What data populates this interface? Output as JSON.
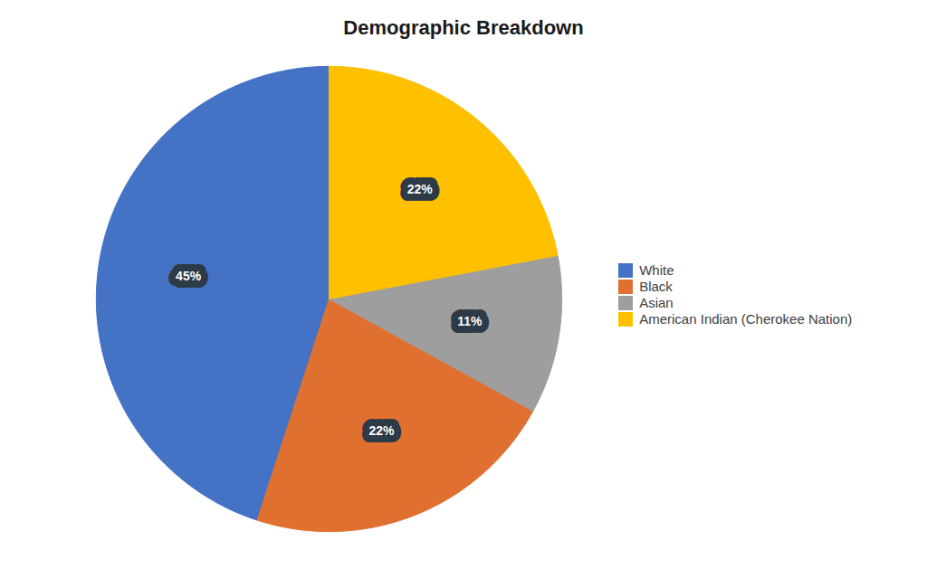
{
  "chart_data": {
    "type": "pie",
    "title": "Demographic Breakdown",
    "categories": [
      "White",
      "Black",
      "Asian",
      "American Indian (Cherokee Nation)"
    ],
    "values": [
      45,
      22,
      11,
      22
    ],
    "value_labels": [
      "45%",
      "22%",
      "11%",
      "22%"
    ],
    "colors": [
      "#4472C4",
      "#E07030",
      "#9E9E9E",
      "#FFC000"
    ],
    "data_labels": true,
    "legend": "right"
  }
}
